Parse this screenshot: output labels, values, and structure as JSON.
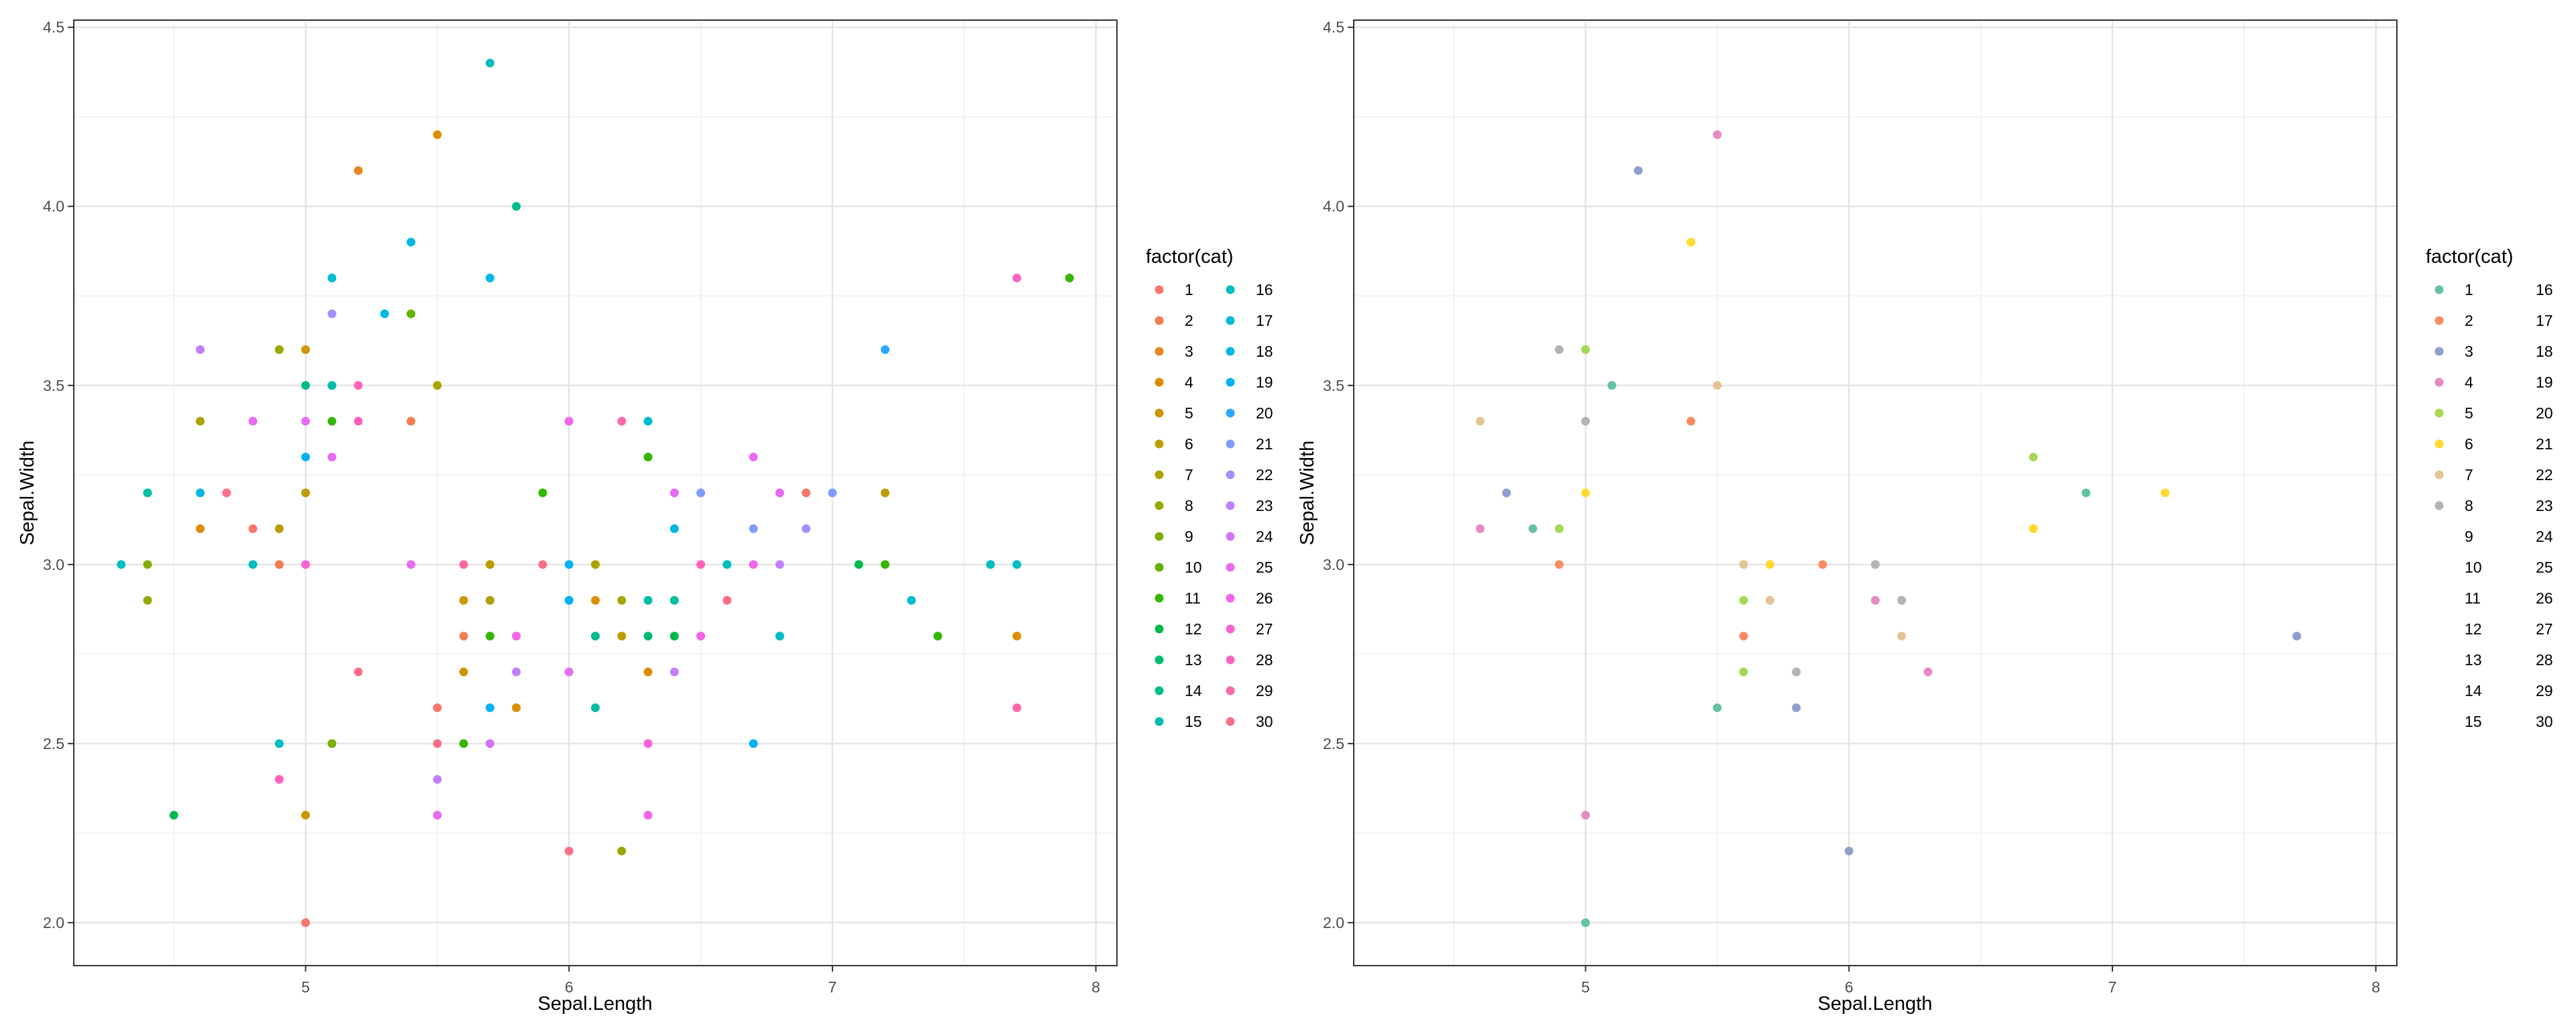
{
  "figure": {
    "background": "#ffffff"
  },
  "chart_data": [
    {
      "type": "scatter",
      "xlabel": "Sepal.Length",
      "ylabel": "Sepal.Width",
      "xlim": [
        4.12,
        8.08
      ],
      "ylim": [
        1.88,
        4.52
      ],
      "xticks": [
        5,
        6,
        7,
        8
      ],
      "yticks": [
        2.0,
        2.5,
        3.0,
        3.5,
        4.0,
        4.5
      ],
      "xtick_labels": [
        "5",
        "6",
        "7",
        "8"
      ],
      "ytick_labels": [
        "2.0",
        "2.5",
        "3.0",
        "3.5",
        "4.0",
        "4.5"
      ],
      "grid": true,
      "legend": {
        "title": "factor(cat)",
        "placement": "right",
        "items": [
          {
            "label": "1",
            "color": "#F8766D"
          },
          {
            "label": "2",
            "color": "#F17D51"
          },
          {
            "label": "3",
            "color": "#E7851E"
          },
          {
            "label": "4",
            "color": "#DB8E00"
          },
          {
            "label": "5",
            "color": "#CE9600"
          },
          {
            "label": "6",
            "color": "#BE9C00"
          },
          {
            "label": "7",
            "color": "#ACA300"
          },
          {
            "label": "8",
            "color": "#98A800"
          },
          {
            "label": "9",
            "color": "#80AD00"
          },
          {
            "label": "10",
            "color": "#63B200"
          },
          {
            "label": "11",
            "color": "#35B600"
          },
          {
            "label": "12",
            "color": "#00B94A"
          },
          {
            "label": "13",
            "color": "#00BB6E"
          },
          {
            "label": "14",
            "color": "#00BC8C"
          },
          {
            "label": "15",
            "color": "#00BDA6"
          },
          {
            "label": "16",
            "color": "#00BDBF"
          },
          {
            "label": "17",
            "color": "#00BBD5"
          },
          {
            "label": "18",
            "color": "#00B7E8"
          },
          {
            "label": "19",
            "color": "#00B1F6"
          },
          {
            "label": "20",
            "color": "#2AA7FF"
          },
          {
            "label": "21",
            "color": "#7F9CFF"
          },
          {
            "label": "22",
            "color": "#A58FFF"
          },
          {
            "label": "23",
            "color": "#C17FFF"
          },
          {
            "label": "24",
            "color": "#D772FB"
          },
          {
            "label": "25",
            "color": "#E76BF3"
          },
          {
            "label": "26",
            "color": "#F365E6"
          },
          {
            "label": "27",
            "color": "#FA62D4"
          },
          {
            "label": "28",
            "color": "#FF62BC"
          },
          {
            "label": "29",
            "color": "#FF67A4"
          },
          {
            "label": "30",
            "color": "#FD6F89"
          }
        ]
      },
      "points": [
        {
          "x": 4.3,
          "y": 3.0,
          "cat": 16
        },
        {
          "x": 4.4,
          "y": 2.9,
          "cat": 8
        },
        {
          "x": 4.4,
          "y": 3.0,
          "cat": 9
        },
        {
          "x": 4.4,
          "y": 3.2,
          "cat": 15
        },
        {
          "x": 4.5,
          "y": 2.3,
          "cat": 12
        },
        {
          "x": 4.6,
          "y": 3.1,
          "cat": 4
        },
        {
          "x": 4.6,
          "y": 3.2,
          "cat": 18
        },
        {
          "x": 4.6,
          "y": 3.4,
          "cat": 7
        },
        {
          "x": 4.6,
          "y": 3.6,
          "cat": 23
        },
        {
          "x": 4.7,
          "y": 3.2,
          "cat": 30
        },
        {
          "x": 4.8,
          "y": 3.0,
          "cat": 16
        },
        {
          "x": 4.8,
          "y": 3.1,
          "cat": 1
        },
        {
          "x": 4.8,
          "y": 3.4,
          "cat": 25
        },
        {
          "x": 4.9,
          "y": 2.4,
          "cat": 28
        },
        {
          "x": 4.9,
          "y": 2.5,
          "cat": 16
        },
        {
          "x": 4.9,
          "y": 3.0,
          "cat": 2
        },
        {
          "x": 4.9,
          "y": 3.1,
          "cat": 6
        },
        {
          "x": 4.9,
          "y": 3.6,
          "cat": 8
        },
        {
          "x": 5.0,
          "y": 2.0,
          "cat": 1
        },
        {
          "x": 5.0,
          "y": 2.3,
          "cat": 5
        },
        {
          "x": 5.0,
          "y": 3.0,
          "cat": 27
        },
        {
          "x": 5.0,
          "y": 3.2,
          "cat": 6
        },
        {
          "x": 5.0,
          "y": 3.3,
          "cat": 19
        },
        {
          "x": 5.0,
          "y": 3.4,
          "cat": 25
        },
        {
          "x": 5.0,
          "y": 3.5,
          "cat": 14
        },
        {
          "x": 5.0,
          "y": 3.6,
          "cat": 5
        },
        {
          "x": 5.1,
          "y": 2.5,
          "cat": 9
        },
        {
          "x": 5.1,
          "y": 3.3,
          "cat": 25
        },
        {
          "x": 5.1,
          "y": 3.4,
          "cat": 11
        },
        {
          "x": 5.1,
          "y": 3.5,
          "cat": 15
        },
        {
          "x": 5.1,
          "y": 3.7,
          "cat": 22
        },
        {
          "x": 5.1,
          "y": 3.8,
          "cat": 17
        },
        {
          "x": 5.2,
          "y": 2.7,
          "cat": 30
        },
        {
          "x": 5.2,
          "y": 3.4,
          "cat": 28
        },
        {
          "x": 5.2,
          "y": 3.5,
          "cat": 28
        },
        {
          "x": 5.2,
          "y": 4.1,
          "cat": 3
        },
        {
          "x": 5.3,
          "y": 3.7,
          "cat": 18
        },
        {
          "x": 5.4,
          "y": 3.0,
          "cat": 25
        },
        {
          "x": 5.4,
          "y": 3.4,
          "cat": 2
        },
        {
          "x": 5.4,
          "y": 3.7,
          "cat": 10
        },
        {
          "x": 5.4,
          "y": 3.9,
          "cat": 18
        },
        {
          "x": 5.5,
          "y": 2.3,
          "cat": 25
        },
        {
          "x": 5.5,
          "y": 2.4,
          "cat": 23
        },
        {
          "x": 5.5,
          "y": 2.5,
          "cat": 30
        },
        {
          "x": 5.5,
          "y": 2.6,
          "cat": 1
        },
        {
          "x": 5.5,
          "y": 3.5,
          "cat": 7
        },
        {
          "x": 5.5,
          "y": 4.2,
          "cat": 4
        },
        {
          "x": 5.6,
          "y": 2.5,
          "cat": 11
        },
        {
          "x": 5.6,
          "y": 2.7,
          "cat": 5
        },
        {
          "x": 5.6,
          "y": 2.8,
          "cat": 2
        },
        {
          "x": 5.6,
          "y": 2.9,
          "cat": 5
        },
        {
          "x": 5.6,
          "y": 3.0,
          "cat": 29
        },
        {
          "x": 5.7,
          "y": 2.5,
          "cat": 24
        },
        {
          "x": 5.7,
          "y": 2.6,
          "cat": 19
        },
        {
          "x": 5.7,
          "y": 2.8,
          "cat": 11
        },
        {
          "x": 5.7,
          "y": 2.9,
          "cat": 7
        },
        {
          "x": 5.7,
          "y": 3.0,
          "cat": 6
        },
        {
          "x": 5.7,
          "y": 3.8,
          "cat": 18
        },
        {
          "x": 5.7,
          "y": 4.4,
          "cat": 16
        },
        {
          "x": 5.8,
          "y": 2.6,
          "cat": 4
        },
        {
          "x": 5.8,
          "y": 2.7,
          "cat": 23
        },
        {
          "x": 5.8,
          "y": 2.8,
          "cat": 26
        },
        {
          "x": 5.8,
          "y": 4.0,
          "cat": 14
        },
        {
          "x": 5.9,
          "y": 3.0,
          "cat": 30
        },
        {
          "x": 5.9,
          "y": 3.2,
          "cat": 11
        },
        {
          "x": 6.0,
          "y": 2.2,
          "cat": 30
        },
        {
          "x": 6.0,
          "y": 2.7,
          "cat": 25
        },
        {
          "x": 6.0,
          "y": 2.9,
          "cat": 19
        },
        {
          "x": 6.0,
          "y": 3.0,
          "cat": 19
        },
        {
          "x": 6.0,
          "y": 3.4,
          "cat": 26
        },
        {
          "x": 6.1,
          "y": 2.6,
          "cat": 15
        },
        {
          "x": 6.1,
          "y": 2.8,
          "cat": 14
        },
        {
          "x": 6.1,
          "y": 2.9,
          "cat": 4
        },
        {
          "x": 6.1,
          "y": 3.0,
          "cat": 7
        },
        {
          "x": 6.2,
          "y": 2.2,
          "cat": 8
        },
        {
          "x": 6.2,
          "y": 2.8,
          "cat": 6
        },
        {
          "x": 6.2,
          "y": 2.9,
          "cat": 7
        },
        {
          "x": 6.2,
          "y": 3.4,
          "cat": 29
        },
        {
          "x": 6.3,
          "y": 2.3,
          "cat": 26
        },
        {
          "x": 6.3,
          "y": 2.5,
          "cat": 27
        },
        {
          "x": 6.3,
          "y": 2.7,
          "cat": 4
        },
        {
          "x": 6.3,
          "y": 2.8,
          "cat": 13
        },
        {
          "x": 6.3,
          "y": 2.9,
          "cat": 15
        },
        {
          "x": 6.3,
          "y": 3.3,
          "cat": 11
        },
        {
          "x": 6.3,
          "y": 3.4,
          "cat": 17
        },
        {
          "x": 6.4,
          "y": 2.7,
          "cat": 23
        },
        {
          "x": 6.4,
          "y": 2.8,
          "cat": 12
        },
        {
          "x": 6.4,
          "y": 2.9,
          "cat": 15
        },
        {
          "x": 6.4,
          "y": 3.1,
          "cat": 18
        },
        {
          "x": 6.4,
          "y": 3.2,
          "cat": 25
        },
        {
          "x": 6.5,
          "y": 2.8,
          "cat": 26
        },
        {
          "x": 6.5,
          "y": 3.0,
          "cat": 28
        },
        {
          "x": 6.5,
          "y": 3.2,
          "cat": 21
        },
        {
          "x": 6.6,
          "y": 2.9,
          "cat": 30
        },
        {
          "x": 6.6,
          "y": 3.0,
          "cat": 16
        },
        {
          "x": 6.7,
          "y": 2.5,
          "cat": 19
        },
        {
          "x": 6.7,
          "y": 3.0,
          "cat": 26
        },
        {
          "x": 6.7,
          "y": 3.1,
          "cat": 21
        },
        {
          "x": 6.7,
          "y": 3.3,
          "cat": 25
        },
        {
          "x": 6.8,
          "y": 2.8,
          "cat": 16
        },
        {
          "x": 6.8,
          "y": 3.0,
          "cat": 23
        },
        {
          "x": 6.8,
          "y": 3.2,
          "cat": 25
        },
        {
          "x": 6.9,
          "y": 3.1,
          "cat": 22
        },
        {
          "x": 6.9,
          "y": 3.2,
          "cat": 1
        },
        {
          "x": 7.0,
          "y": 3.2,
          "cat": 21
        },
        {
          "x": 7.1,
          "y": 3.0,
          "cat": 12
        },
        {
          "x": 7.2,
          "y": 3.0,
          "cat": 11
        },
        {
          "x": 7.2,
          "y": 3.2,
          "cat": 6
        },
        {
          "x": 7.2,
          "y": 3.6,
          "cat": 20
        },
        {
          "x": 7.3,
          "y": 2.9,
          "cat": 17
        },
        {
          "x": 7.4,
          "y": 2.8,
          "cat": 11
        },
        {
          "x": 7.6,
          "y": 3.0,
          "cat": 16
        },
        {
          "x": 7.7,
          "y": 2.6,
          "cat": 29
        },
        {
          "x": 7.7,
          "y": 2.8,
          "cat": 4
        },
        {
          "x": 7.7,
          "y": 3.0,
          "cat": 16
        },
        {
          "x": 7.7,
          "y": 3.8,
          "cat": 28
        },
        {
          "x": 7.9,
          "y": 3.8,
          "cat": 11
        }
      ]
    },
    {
      "type": "scatter",
      "xlabel": "Sepal.Length",
      "ylabel": "Sepal.Width",
      "xlim": [
        4.12,
        8.08
      ],
      "ylim": [
        1.88,
        4.52
      ],
      "xticks": [
        5,
        6,
        7,
        8
      ],
      "yticks": [
        2.0,
        2.5,
        3.0,
        3.5,
        4.0,
        4.5
      ],
      "xtick_labels": [
        "5",
        "6",
        "7",
        "8"
      ],
      "ytick_labels": [
        "2.0",
        "2.5",
        "3.0",
        "3.5",
        "4.0",
        "4.5"
      ],
      "grid": true,
      "legend": {
        "title": "factor(cat)",
        "placement": "right",
        "items": [
          {
            "label": "1",
            "color": "#66C2A5"
          },
          {
            "label": "2",
            "color": "#FC8D62"
          },
          {
            "label": "3",
            "color": "#8DA0CB"
          },
          {
            "label": "4",
            "color": "#E78AC3"
          },
          {
            "label": "5",
            "color": "#A6D854"
          },
          {
            "label": "6",
            "color": "#FFD92F"
          },
          {
            "label": "7",
            "color": "#E5C494"
          },
          {
            "label": "8",
            "color": "#B3B3B3"
          },
          {
            "label": "9",
            "color": ""
          },
          {
            "label": "10",
            "color": ""
          },
          {
            "label": "11",
            "color": ""
          },
          {
            "label": "12",
            "color": ""
          },
          {
            "label": "13",
            "color": ""
          },
          {
            "label": "14",
            "color": ""
          },
          {
            "label": "15",
            "color": ""
          },
          {
            "label": "16",
            "color": ""
          },
          {
            "label": "17",
            "color": ""
          },
          {
            "label": "18",
            "color": ""
          },
          {
            "label": "19",
            "color": ""
          },
          {
            "label": "20",
            "color": ""
          },
          {
            "label": "21",
            "color": ""
          },
          {
            "label": "22",
            "color": ""
          },
          {
            "label": "23",
            "color": ""
          },
          {
            "label": "24",
            "color": ""
          },
          {
            "label": "25",
            "color": ""
          },
          {
            "label": "26",
            "color": ""
          },
          {
            "label": "27",
            "color": ""
          },
          {
            "label": "28",
            "color": ""
          },
          {
            "label": "29",
            "color": ""
          },
          {
            "label": "30",
            "color": ""
          }
        ]
      },
      "points": [
        {
          "x": 4.6,
          "y": 3.1,
          "cat": 4
        },
        {
          "x": 4.6,
          "y": 3.4,
          "cat": 7
        },
        {
          "x": 4.7,
          "y": 3.2,
          "cat": 3
        },
        {
          "x": 4.8,
          "y": 3.1,
          "cat": 1
        },
        {
          "x": 4.9,
          "y": 3.0,
          "cat": 2
        },
        {
          "x": 4.9,
          "y": 3.1,
          "cat": 5
        },
        {
          "x": 4.9,
          "y": 3.6,
          "cat": 8
        },
        {
          "x": 5.0,
          "y": 2.0,
          "cat": 1
        },
        {
          "x": 5.0,
          "y": 2.3,
          "cat": 4
        },
        {
          "x": 5.0,
          "y": 3.2,
          "cat": 6
        },
        {
          "x": 5.0,
          "y": 3.4,
          "cat": 8
        },
        {
          "x": 5.0,
          "y": 3.6,
          "cat": 5
        },
        {
          "x": 5.1,
          "y": 3.5,
          "cat": 1
        },
        {
          "x": 5.2,
          "y": 4.1,
          "cat": 3
        },
        {
          "x": 5.4,
          "y": 3.4,
          "cat": 2
        },
        {
          "x": 5.4,
          "y": 3.9,
          "cat": 6
        },
        {
          "x": 5.5,
          "y": 2.6,
          "cat": 1
        },
        {
          "x": 5.5,
          "y": 3.5,
          "cat": 7
        },
        {
          "x": 5.5,
          "y": 4.2,
          "cat": 4
        },
        {
          "x": 5.6,
          "y": 2.7,
          "cat": 5
        },
        {
          "x": 5.6,
          "y": 2.8,
          "cat": 2
        },
        {
          "x": 5.6,
          "y": 2.9,
          "cat": 5
        },
        {
          "x": 5.6,
          "y": 3.0,
          "cat": 7
        },
        {
          "x": 5.7,
          "y": 2.9,
          "cat": 7
        },
        {
          "x": 5.7,
          "y": 3.0,
          "cat": 6
        },
        {
          "x": 5.8,
          "y": 2.6,
          "cat": 3
        },
        {
          "x": 5.8,
          "y": 2.7,
          "cat": 8
        },
        {
          "x": 5.9,
          "y": 3.0,
          "cat": 2
        },
        {
          "x": 6.0,
          "y": 2.2,
          "cat": 3
        },
        {
          "x": 6.1,
          "y": 2.9,
          "cat": 4
        },
        {
          "x": 6.1,
          "y": 3.0,
          "cat": 8
        },
        {
          "x": 6.2,
          "y": 2.8,
          "cat": 7
        },
        {
          "x": 6.2,
          "y": 2.9,
          "cat": 8
        },
        {
          "x": 6.3,
          "y": 2.7,
          "cat": 4
        },
        {
          "x": 6.7,
          "y": 3.1,
          "cat": 6
        },
        {
          "x": 6.7,
          "y": 3.3,
          "cat": 5
        },
        {
          "x": 6.9,
          "y": 3.2,
          "cat": 1
        },
        {
          "x": 7.2,
          "y": 3.2,
          "cat": 6
        },
        {
          "x": 7.7,
          "y": 2.8,
          "cat": 3
        }
      ]
    }
  ]
}
